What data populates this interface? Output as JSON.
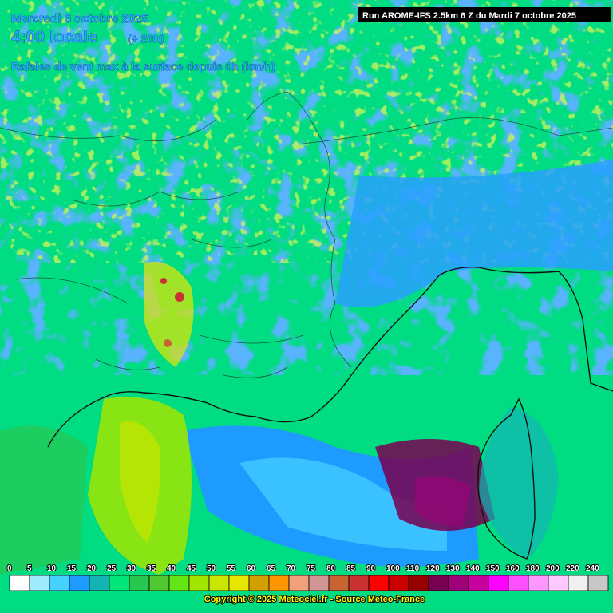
{
  "header": {
    "date": "Mercredi 8 octobre 2025",
    "time": "4:00 locale",
    "offset": "(+ 20h)",
    "title": "Rafales de vent max à la surface depuis 0h (km/h)",
    "run": "Run AROME-IFS 2.5km 6 Z du Mardi 7 octobre 2025"
  },
  "legend": {
    "items": [
      {
        "label": "0",
        "color": "#ffffff"
      },
      {
        "label": "5",
        "color": "#a0ecff"
      },
      {
        "label": "10",
        "color": "#46d2ff"
      },
      {
        "label": "15",
        "color": "#1e9bff"
      },
      {
        "label": "20",
        "color": "#14b4b4"
      },
      {
        "label": "25",
        "color": "#00e678"
      },
      {
        "label": "30",
        "color": "#28c850"
      },
      {
        "label": "35",
        "color": "#50c832"
      },
      {
        "label": "40",
        "color": "#64e614"
      },
      {
        "label": "45",
        "color": "#a0e600"
      },
      {
        "label": "50",
        "color": "#c8e600"
      },
      {
        "label": "55",
        "color": "#e6e600"
      },
      {
        "label": "60",
        "color": "#d2a000"
      },
      {
        "label": "65",
        "color": "#ff9600"
      },
      {
        "label": "70",
        "color": "#f0a07a"
      },
      {
        "label": "75",
        "color": "#d29696"
      },
      {
        "label": "80",
        "color": "#c86432"
      },
      {
        "label": "85",
        "color": "#c83232"
      },
      {
        "label": "90",
        "color": "#ff0000"
      },
      {
        "label": "100",
        "color": "#c80000"
      },
      {
        "label": "110",
        "color": "#960000"
      },
      {
        "label": "120",
        "color": "#780050"
      },
      {
        "label": "130",
        "color": "#a00078"
      },
      {
        "label": "140",
        "color": "#c800a0"
      },
      {
        "label": "150",
        "color": "#ff00ff"
      },
      {
        "label": "160",
        "color": "#ff50ff"
      },
      {
        "label": "180",
        "color": "#ff96ff"
      },
      {
        "label": "200",
        "color": "#ffc8ff"
      },
      {
        "label": "220",
        "color": "#f0f0f0"
      },
      {
        "label": "240",
        "color": "#c8c8c8"
      }
    ]
  },
  "footer": {
    "copyright": "Copyright © 2025 Meteociel.fr - Source Meteo-France"
  }
}
